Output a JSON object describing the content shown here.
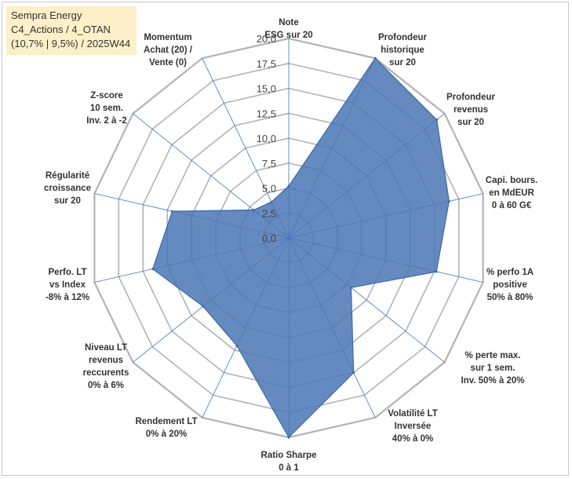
{
  "title": {
    "line1": "Sempra Energy",
    "line2": "C4_Actions / 4_OTAN",
    "line3": "(10,7% | 9,5%) / 2025W44"
  },
  "colors": {
    "fill": "#4a76b4",
    "stroke": "#3d68a8",
    "grid": "#b3b3b3",
    "spoke": "#4472c4",
    "title_bg": "#fdf0c8"
  },
  "chart_data": {
    "type": "radar",
    "title": "Sempra Energy",
    "rmin": 0,
    "rmax": 20,
    "ticks": [
      "0,0",
      "2,5",
      "5,0",
      "7,5",
      "10,0",
      "12,5",
      "15,0",
      "17,5",
      "20,0"
    ],
    "categories": [
      [
        "Note",
        "ESG sur 20"
      ],
      [
        "Profondeur",
        "historique",
        "sur 20"
      ],
      [
        "Profondeur",
        "revenus",
        "sur 20"
      ],
      [
        "Capi. bours.",
        "en MdEUR",
        "0 à 60 G€"
      ],
      [
        "% perfo 1A",
        "positive",
        "50% à 80%"
      ],
      [
        "% perte max.",
        "sur 1 sem.",
        "Inv. 50% à 20%"
      ],
      [
        "Volatilité LT",
        "Inversée",
        "40% à 0%"
      ],
      [
        "Ratio Sharpe",
        "0 à 1"
      ],
      [
        "Rendement LT",
        "0% à 20%"
      ],
      [
        "Niveau LT",
        "revenus",
        "reccurents",
        "0% à 6%"
      ],
      [
        "Perfo. LT",
        "vs Index",
        "-8% à 12%"
      ],
      [
        "Régularité",
        "croissance",
        "sur 20"
      ],
      [
        "Z-score",
        "10 sem.",
        "Inv. 2 à -2"
      ],
      [
        "Momentum",
        "Achat (20) /",
        "Vente (0)"
      ]
    ],
    "series": [
      {
        "name": "Sempra Energy",
        "values": [
          5.2,
          20.0,
          19.0,
          16.5,
          15.2,
          8.0,
          15.0,
          20.0,
          12.0,
          11.0,
          14.0,
          12.0,
          4.5,
          4.0
        ]
      }
    ]
  }
}
